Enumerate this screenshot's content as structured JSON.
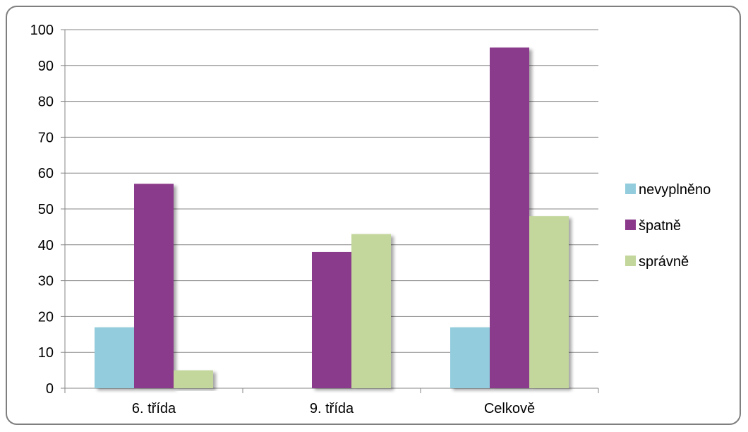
{
  "chart_data": {
    "type": "bar",
    "categories": [
      "6. třída",
      "9. třída",
      "Celkově"
    ],
    "series": [
      {
        "name": "nevyplněno",
        "color": "#93CDDD",
        "values": [
          17,
          0,
          17
        ]
      },
      {
        "name": "špatně",
        "color": "#8B3A8B",
        "values": [
          57,
          38,
          95
        ]
      },
      {
        "name": "správně",
        "color": "#C3D69B",
        "values": [
          5,
          43,
          48
        ]
      }
    ],
    "ylim": [
      0,
      100
    ],
    "yticks": [
      0,
      10,
      20,
      30,
      40,
      50,
      60,
      70,
      80,
      90,
      100
    ],
    "grid": true,
    "legend_position": "right"
  }
}
